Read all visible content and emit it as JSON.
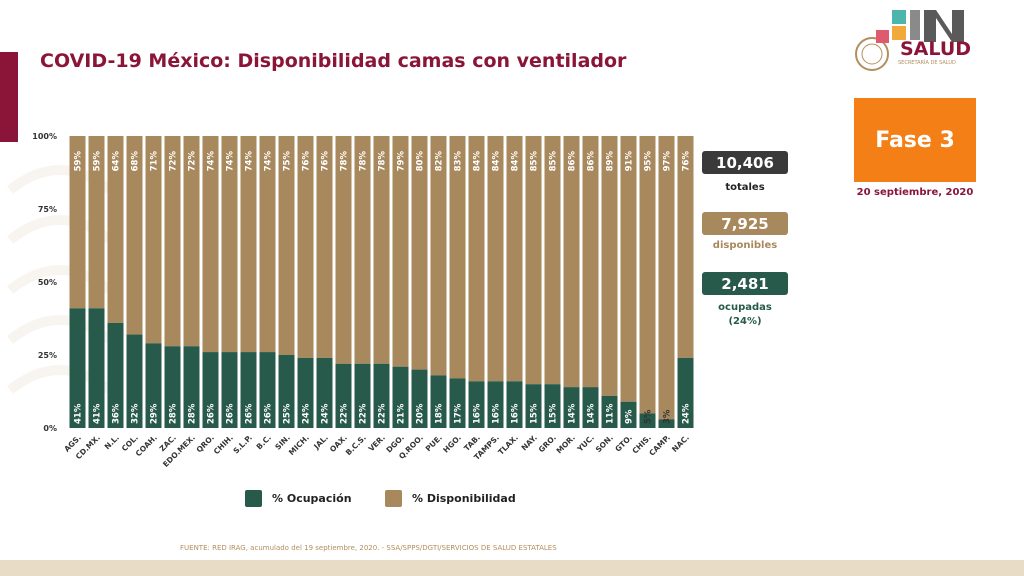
{
  "title": "COVID-19 México: Disponibilidad camas con ventilador",
  "logo": {
    "text": "SALUD",
    "subtitle": "SECRETARÍA DE SALUD"
  },
  "phase": {
    "label": "Fase 3",
    "date": "20 septiembre, 2020"
  },
  "stats": {
    "total_value": "10,406",
    "total_label": "totales",
    "available_value": "7,925",
    "available_label": "disponibles",
    "occupied_value": "2,481",
    "occupied_label": "ocupadas",
    "occupied_pct": "(24%)"
  },
  "legend": {
    "occupied": "% Ocupación",
    "available": "% Disponibilidad"
  },
  "source": "FUENTE: RED IRAG, acumulado del 19 septiembre, 2020.  -  SSA/SPPS/DGTI/SERVICIOS DE SALUD ESTATALES",
  "colors": {
    "occupied": "#275a4a",
    "available": "#a8885d",
    "brand": "#8a1538",
    "phase": "#f57f17",
    "total_box": "#3a3a3a"
  },
  "chart_data": {
    "type": "bar",
    "stacked": true,
    "categories": [
      "AGS.",
      "CD.MX.",
      "N.L.",
      "COL.",
      "COAH.",
      "ZAC.",
      "EDO.MEX.",
      "QRO.",
      "CHIH.",
      "S.L.P.",
      "B.C.",
      "SIN.",
      "MICH.",
      "JAL.",
      "OAX.",
      "B.C.S.",
      "VER.",
      "DGO.",
      "Q.ROO.",
      "PUE.",
      "HGO.",
      "TAB.",
      "TAMPS.",
      "TLAX.",
      "NAY.",
      "GRO.",
      "MOR.",
      "YUC.",
      "SON.",
      "GTO.",
      "CHIS.",
      "CAMP.",
      "NAC."
    ],
    "series": [
      {
        "name": "% Ocupación",
        "values": [
          41,
          41,
          36,
          32,
          29,
          28,
          28,
          26,
          26,
          26,
          26,
          25,
          24,
          24,
          22,
          22,
          22,
          21,
          20,
          18,
          17,
          16,
          16,
          16,
          15,
          15,
          14,
          14,
          11,
          9,
          5,
          3,
          24
        ]
      },
      {
        "name": "% Disponibilidad",
        "values": [
          59,
          59,
          64,
          68,
          71,
          72,
          72,
          74,
          74,
          74,
          74,
          75,
          76,
          76,
          78,
          78,
          78,
          79,
          80,
          82,
          83,
          84,
          84,
          84,
          85,
          85,
          86,
          86,
          89,
          91,
          95,
          97,
          76
        ]
      }
    ],
    "y_ticks": [
      "0%",
      "25%",
      "50%",
      "75%",
      "100%"
    ],
    "ylim": [
      0,
      100
    ],
    "grid": false,
    "legend_position": "bottom"
  }
}
